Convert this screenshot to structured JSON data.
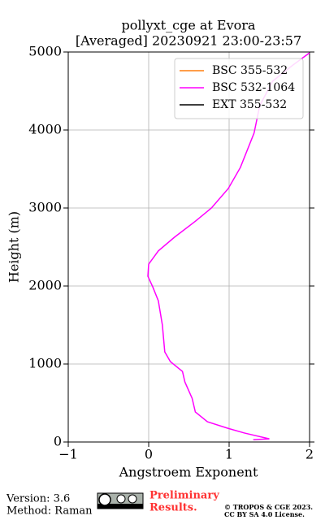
{
  "chart_data": {
    "type": "line",
    "title": "pollyxt_cge at Evora",
    "subtitle": "[Averaged] 20230921 23:00-23:57",
    "xlabel": "Angstroem Exponent",
    "ylabel": "Height (m)",
    "xlim": [
      -1,
      2
    ],
    "ylim": [
      0,
      5000
    ],
    "xticks": [
      {
        "value": -1,
        "label": "−1"
      },
      0,
      1,
      2
    ],
    "yticks": [
      0,
      1000,
      2000,
      3000,
      4000,
      5000
    ],
    "grid": true,
    "legend": "upper right",
    "series": [
      {
        "name": "BSC 355-532",
        "color": "#ff7f0e",
        "x": [],
        "y": []
      },
      {
        "name": "BSC 532-1064",
        "color": "#ff00ff",
        "x": [
          1.3,
          1.5,
          1.19,
          0.98,
          0.73,
          0.58,
          0.54,
          0.45,
          0.42,
          0.27,
          0.2,
          0.17,
          0.12,
          0.05,
          -0.01,
          0.0,
          0.12,
          0.32,
          0.58,
          0.78,
          0.99,
          1.14,
          1.31,
          1.38,
          1.54,
          1.79,
          2.0
        ],
        "y": [
          30,
          40,
          115,
          177,
          260,
          385,
          560,
          770,
          905,
          1030,
          1155,
          1500,
          1810,
          1990,
          2125,
          2280,
          2450,
          2625,
          2830,
          3000,
          3250,
          3520,
          3960,
          4310,
          4625,
          4830,
          4990
        ]
      },
      {
        "name": "EXT 355-532",
        "color": "#000000",
        "x": [],
        "y": []
      }
    ]
  },
  "footer": {
    "version": "Version: 3.6",
    "method": "Method: Raman",
    "preliminary": [
      "Preliminary",
      "Results."
    ],
    "copyright": [
      "© TROPOS & CGE 2023.",
      "CC BY SA 4.0 License."
    ]
  }
}
